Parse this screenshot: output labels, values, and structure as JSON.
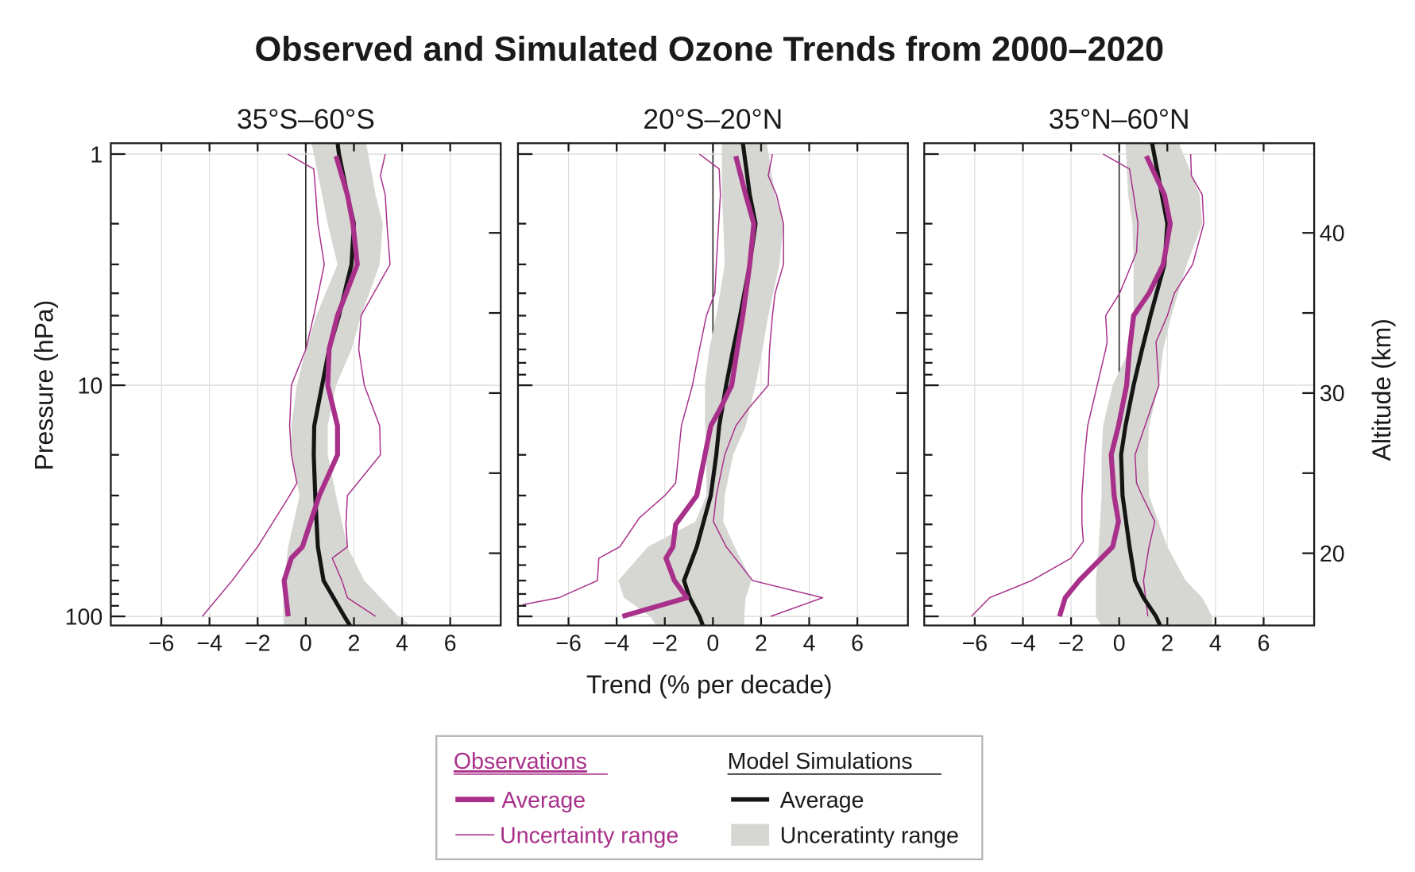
{
  "chart_data": {
    "type": "line",
    "title": "Observed and Simulated Ozone Trends from 2000–2020",
    "xlabel": "Trend (% per decade)",
    "ylabel": "Pressure  (hPa)",
    "ylabel_right": "Altitude  (km)",
    "xlim": [
      -8.1,
      8.1
    ],
    "ylim": [
      110,
      0.9
    ],
    "y_scale": "log",
    "y_inverted": true,
    "grid": true,
    "x_ticks": [
      -6,
      -4,
      -2,
      0,
      2,
      4,
      6
    ],
    "x_tick_labels": [
      "−6",
      "−4",
      "−2",
      "0",
      "2",
      "4",
      "6"
    ],
    "y_ticks": [
      1,
      10,
      100
    ],
    "y_tick_labels": [
      "1",
      "10",
      "100"
    ],
    "altitude_ticks": [
      20,
      25,
      30,
      35,
      40
    ],
    "altitude_tick_labels": [
      "20",
      "30",
      "40"
    ],
    "altitude_labeled_values": [
      20,
      30,
      40
    ],
    "colors": {
      "observations": "#a8308a",
      "model_average": "#151515",
      "model_range": "#d6d6d2"
    },
    "legend": {
      "placement": "bottom",
      "observations_heading": "Observations",
      "model_heading": "Model Simulations",
      "obs_average": "Average",
      "obs_range": "Uncertainty range",
      "model_average": "Average",
      "model_range": "Unceratinty range"
    },
    "panels": [
      {
        "title": "35°S–60°S",
        "obs_average": [
          [
            1.02,
            1.26
          ],
          [
            1.5,
            1.73
          ],
          [
            2,
            1.96
          ],
          [
            3,
            2.14
          ],
          [
            5,
            1.32
          ],
          [
            7,
            0.97
          ],
          [
            10,
            0.91
          ],
          [
            15,
            1.32
          ],
          [
            20,
            1.32
          ],
          [
            30,
            0.56
          ],
          [
            50,
            -0.14
          ],
          [
            56,
            -0.6
          ],
          [
            70,
            -0.9
          ],
          [
            100,
            -0.73
          ]
        ],
        "obs_lower": [
          [
            1,
            -0.75
          ],
          [
            1.16,
            0.33
          ],
          [
            1.5,
            0.42
          ],
          [
            2,
            0.5
          ],
          [
            3,
            0.77
          ],
          [
            5,
            0.33
          ],
          [
            7,
            0.0
          ],
          [
            10,
            -0.6
          ],
          [
            15,
            -0.67
          ],
          [
            20,
            -0.6
          ],
          [
            26.5,
            -0.37
          ],
          [
            30,
            -0.67
          ],
          [
            50,
            -2.0
          ],
          [
            70,
            -3.06
          ],
          [
            100,
            -4.3
          ]
        ],
        "obs_upper": [
          [
            1,
            3.3
          ],
          [
            1.24,
            3.1
          ],
          [
            1.5,
            3.3
          ],
          [
            2,
            3.37
          ],
          [
            3,
            3.5
          ],
          [
            5,
            2.3
          ],
          [
            7,
            2.2
          ],
          [
            10,
            2.43
          ],
          [
            15,
            3.07
          ],
          [
            20,
            3.1
          ],
          [
            30,
            1.73
          ],
          [
            40,
            1.67
          ],
          [
            50,
            1.73
          ],
          [
            56,
            1.1
          ],
          [
            70,
            1.5
          ],
          [
            83,
            1.73
          ],
          [
            100,
            2.9
          ]
        ],
        "model_average": [
          [
            0.89,
            1.32
          ],
          [
            1,
            1.38
          ],
          [
            1.5,
            1.73
          ],
          [
            2,
            2.0
          ],
          [
            3,
            1.9
          ],
          [
            5,
            1.38
          ],
          [
            7,
            0.97
          ],
          [
            10,
            0.68
          ],
          [
            15,
            0.35
          ],
          [
            20,
            0.33
          ],
          [
            30,
            0.39
          ],
          [
            50,
            0.5
          ],
          [
            70,
            0.74
          ],
          [
            100,
            1.6
          ],
          [
            110,
            1.85
          ]
        ],
        "model_range": {
          "pressure": [
            0.89,
            1.5,
            2,
            3,
            5,
            7,
            10,
            15,
            20,
            30,
            50,
            70,
            100,
            110
          ],
          "lower": [
            0.23,
            0.68,
            0.91,
            1.32,
            0.44,
            0.0,
            -0.37,
            -0.6,
            -0.6,
            -0.26,
            -0.73,
            -0.9,
            -0.94,
            -0.9
          ],
          "upper": [
            2.5,
            2.9,
            3.2,
            3.07,
            2.3,
            1.9,
            1.26,
            0.91,
            0.91,
            1.26,
            1.73,
            2.43,
            3.84,
            4.4
          ]
        }
      },
      {
        "title": "20°S–20°N",
        "obs_average": [
          [
            1.02,
            0.95
          ],
          [
            1.5,
            1.36
          ],
          [
            2,
            1.7
          ],
          [
            3,
            1.53
          ],
          [
            5,
            1.24
          ],
          [
            7,
            1.01
          ],
          [
            10,
            0.78
          ],
          [
            12.6,
            0.31
          ],
          [
            15,
            -0.09
          ],
          [
            20,
            -0.33
          ],
          [
            30,
            -0.67
          ],
          [
            40,
            -1.55
          ],
          [
            50,
            -1.66
          ],
          [
            56,
            -1.95
          ],
          [
            70,
            -1.6
          ],
          [
            83,
            -1.08
          ],
          [
            100,
            -3.76
          ]
        ],
        "obs_lower": [
          [
            1,
            -0.56
          ],
          [
            1.16,
            0.26
          ],
          [
            1.5,
            0.31
          ],
          [
            3,
            0.14
          ],
          [
            4,
            0.08
          ],
          [
            5,
            -0.27
          ],
          [
            7,
            -0.56
          ],
          [
            10,
            -0.85
          ],
          [
            15,
            -1.31
          ],
          [
            20,
            -1.43
          ],
          [
            26.5,
            -1.55
          ],
          [
            30,
            -2.0
          ],
          [
            37.5,
            -3.06
          ],
          [
            50,
            -3.87
          ],
          [
            56,
            -4.74
          ],
          [
            70,
            -4.8
          ],
          [
            83,
            -6.4
          ],
          [
            89,
            -7.9
          ]
        ],
        "obs_upper": [
          [
            1,
            2.47
          ],
          [
            1.24,
            2.3
          ],
          [
            1.5,
            2.64
          ],
          [
            2,
            2.93
          ],
          [
            3,
            2.93
          ],
          [
            4,
            2.58
          ],
          [
            5,
            2.47
          ],
          [
            7,
            2.35
          ],
          [
            10,
            2.3
          ],
          [
            12.6,
            1.48
          ],
          [
            15,
            0.95
          ],
          [
            20,
            0.49
          ],
          [
            30,
            0.14
          ],
          [
            38.9,
            0.02
          ],
          [
            50,
            0.55
          ],
          [
            70,
            1.65
          ],
          [
            83,
            4.56
          ],
          [
            100,
            2.4
          ]
        ],
        "model_average": [
          [
            0.89,
            1.24
          ],
          [
            1.5,
            1.53
          ],
          [
            2,
            1.77
          ],
          [
            3,
            1.53
          ],
          [
            5,
            1.13
          ],
          [
            7,
            0.84
          ],
          [
            10,
            0.55
          ],
          [
            15,
            0.26
          ],
          [
            20,
            0.14
          ],
          [
            30,
            -0.09
          ],
          [
            50,
            -0.67
          ],
          [
            70,
            -1.2
          ],
          [
            83,
            -0.97
          ],
          [
            100,
            -0.56
          ],
          [
            110,
            -0.41
          ]
        ],
        "model_range": {
          "pressure": [
            0.89,
            1.5,
            2,
            3,
            5,
            7,
            10,
            15,
            20,
            30,
            38.9,
            50,
            70,
            83,
            100,
            110
          ],
          "lower": [
            0.37,
            0.37,
            0.43,
            0.49,
            0.14,
            -0.15,
            -0.33,
            -0.33,
            -0.27,
            -0.27,
            -0.73,
            -2.7,
            -3.93,
            -3.7,
            -2.6,
            -2.36
          ],
          "upper": [
            2.23,
            2.58,
            2.93,
            2.76,
            2.3,
            2.06,
            1.77,
            1.36,
            0.84,
            0.49,
            0.43,
            0.9,
            1.6,
            1.36,
            1.3,
            1.3
          ]
        }
      },
      {
        "title": "35°N–60°N",
        "obs_average": [
          [
            1.02,
            1.13
          ],
          [
            1.5,
            1.88
          ],
          [
            2,
            2.12
          ],
          [
            3,
            1.83
          ],
          [
            4,
            1.24
          ],
          [
            5,
            0.6
          ],
          [
            7,
            0.43
          ],
          [
            10,
            0.31
          ],
          [
            15,
            -0.03
          ],
          [
            20,
            -0.33
          ],
          [
            30,
            -0.21
          ],
          [
            38.9,
            -0.03
          ],
          [
            50,
            -0.27
          ],
          [
            70,
            -1.66
          ],
          [
            83,
            -2.24
          ],
          [
            100,
            -2.48
          ]
        ],
        "obs_lower": [
          [
            1,
            -0.67
          ],
          [
            1.16,
            0.43
          ],
          [
            1.5,
            0.6
          ],
          [
            2,
            0.78
          ],
          [
            2.66,
            0.72
          ],
          [
            4,
            0.02
          ],
          [
            5,
            -0.56
          ],
          [
            6.5,
            -0.5
          ],
          [
            7,
            -0.56
          ],
          [
            10,
            -0.91
          ],
          [
            15,
            -1.31
          ],
          [
            20,
            -1.43
          ],
          [
            30,
            -1.55
          ],
          [
            40,
            -1.55
          ],
          [
            47.4,
            -1.49
          ],
          [
            56,
            -2.0
          ],
          [
            70,
            -3.64
          ],
          [
            83,
            -5.38
          ],
          [
            100,
            -6.14
          ]
        ],
        "obs_upper": [
          [
            1,
            2.97
          ],
          [
            1.24,
            3.0
          ],
          [
            1.5,
            3.45
          ],
          [
            2,
            3.51
          ],
          [
            3,
            3.05
          ],
          [
            4,
            2.29
          ],
          [
            5,
            2.0
          ],
          [
            6.5,
            1.53
          ],
          [
            10,
            1.65
          ],
          [
            15,
            1.07
          ],
          [
            20,
            0.66
          ],
          [
            26.5,
            0.72
          ],
          [
            30,
            0.95
          ],
          [
            38.9,
            1.48
          ],
          [
            50,
            1.24
          ],
          [
            70,
            1.01
          ],
          [
            100,
            1.19
          ]
        ],
        "model_average": [
          [
            0.89,
            1.36
          ],
          [
            1.5,
            1.77
          ],
          [
            2,
            2.0
          ],
          [
            3,
            1.88
          ],
          [
            5,
            1.3
          ],
          [
            7,
            0.95
          ],
          [
            10,
            0.6
          ],
          [
            15,
            0.26
          ],
          [
            20,
            0.08
          ],
          [
            30,
            0.14
          ],
          [
            50,
            0.43
          ],
          [
            70,
            0.66
          ],
          [
            83,
            1.01
          ],
          [
            100,
            1.53
          ],
          [
            110,
            1.71
          ]
        ],
        "model_range": {
          "pressure": [
            0.89,
            1.5,
            2,
            3,
            5,
            7,
            10,
            15,
            20,
            30,
            50,
            70,
            83,
            100,
            110
          ],
          "lower": [
            0.26,
            0.37,
            0.55,
            0.6,
            0.6,
            0.43,
            -0.27,
            -0.67,
            -0.73,
            -0.73,
            -0.85,
            -0.97,
            -0.97,
            -0.97,
            -0.73
          ],
          "upper": [
            2.47,
            3.34,
            3.45,
            2.81,
            2.17,
            1.83,
            1.65,
            1.24,
            1.19,
            1.24,
            2.0,
            2.76,
            3.45,
            3.86,
            3.86
          ]
        }
      }
    ]
  }
}
